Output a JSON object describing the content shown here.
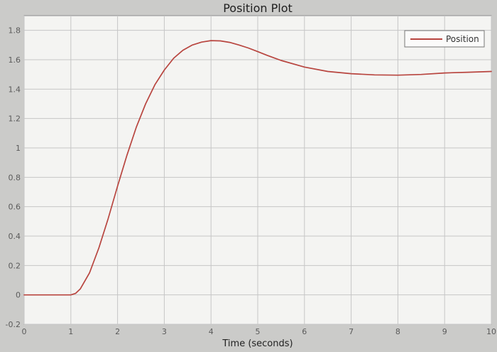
{
  "chart_data": {
    "type": "line",
    "title": "Position Plot",
    "xlabel": "Time (seconds)",
    "ylabel": "",
    "xlim": [
      0,
      10
    ],
    "ylim": [
      -0.2,
      1.9
    ],
    "grid": true,
    "legend_position": "top-right",
    "x_ticks": [
      0,
      1,
      2,
      3,
      4,
      5,
      6,
      7,
      8,
      9,
      10
    ],
    "x_tick_labels": [
      "0",
      "1",
      "2",
      "3",
      "4",
      "5",
      "6",
      "7",
      "8",
      "9",
      "10"
    ],
    "y_ticks": [
      -0.2,
      0,
      0.2,
      0.4,
      0.6,
      0.8,
      1,
      1.2,
      1.4,
      1.6,
      1.8
    ],
    "y_tick_labels": [
      "-0.2",
      "0",
      "0.2",
      "0.4",
      "0.6",
      "0.8",
      "1",
      "1.2",
      "1.4",
      "1.6",
      "1.8"
    ],
    "series": [
      {
        "name": "Position",
        "color": "#b8453f",
        "x": [
          0,
          0.5,
          1.0,
          1.1,
          1.2,
          1.4,
          1.6,
          1.8,
          2.0,
          2.2,
          2.4,
          2.6,
          2.8,
          3.0,
          3.2,
          3.4,
          3.6,
          3.8,
          4.0,
          4.2,
          4.4,
          4.6,
          4.8,
          5.0,
          5.2,
          5.5,
          6.0,
          6.5,
          7.0,
          7.5,
          8.0,
          8.5,
          9.0,
          9.5,
          10.0
        ],
        "y": [
          0.0,
          0.0,
          0.0,
          0.01,
          0.04,
          0.15,
          0.32,
          0.52,
          0.74,
          0.95,
          1.14,
          1.3,
          1.43,
          1.53,
          1.61,
          1.665,
          1.7,
          1.72,
          1.73,
          1.728,
          1.718,
          1.7,
          1.68,
          1.655,
          1.63,
          1.595,
          1.55,
          1.52,
          1.505,
          1.497,
          1.495,
          1.5,
          1.51,
          1.515,
          1.52
        ]
      }
    ]
  }
}
